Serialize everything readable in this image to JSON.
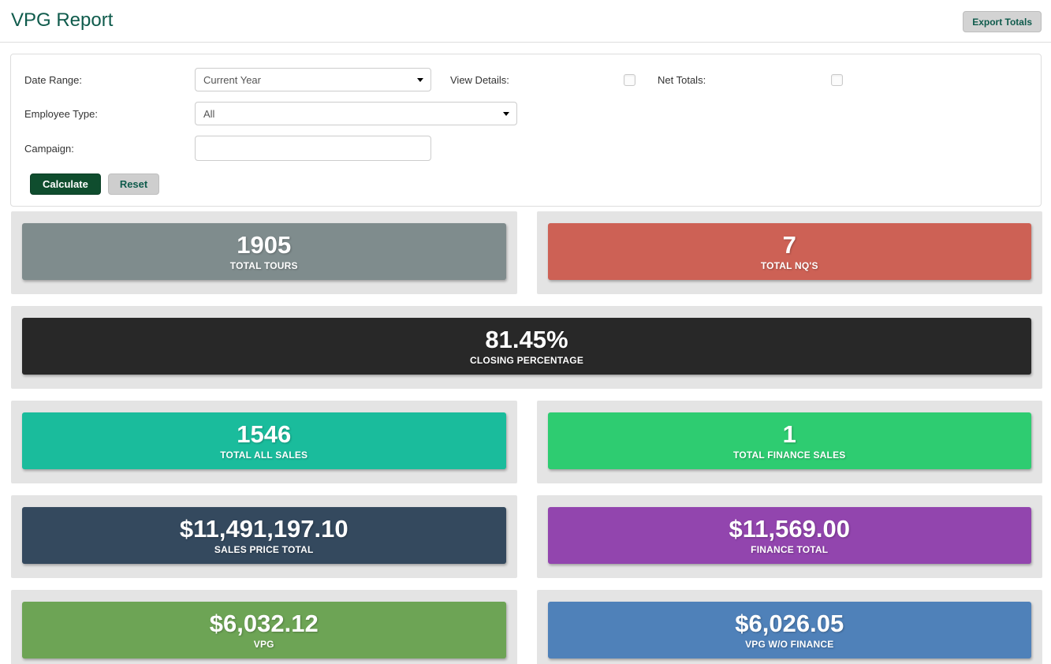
{
  "header": {
    "title": "VPG Report",
    "export_button": "Export Totals"
  },
  "filters": {
    "date_range_label": "Date Range:",
    "date_range_value": "Current Year",
    "view_details_label": "View Details:",
    "net_totals_label": "Net Totals:",
    "employee_type_label": "Employee Type:",
    "employee_type_value": "All",
    "campaign_label": "Campaign:",
    "campaign_value": "",
    "calculate_button": "Calculate",
    "reset_button": "Reset"
  },
  "colors": {
    "title_green": "#0f5b4c",
    "calculate_green": "#0f4d2e",
    "panel_gray": "#e4e4e4"
  },
  "tiles": [
    {
      "value": "1905",
      "label": "TOTAL TOURS",
      "bg": "#7f8c8d"
    },
    {
      "value": "7",
      "label": "TOTAL NQ'S",
      "bg": "#cd6155"
    },
    {
      "value": "81.45%",
      "label": "CLOSING PERCENTAGE",
      "bg": "#282828"
    },
    {
      "value": "1546",
      "label": "TOTAL ALL SALES",
      "bg": "#1abc9c"
    },
    {
      "value": "1",
      "label": "TOTAL FINANCE SALES",
      "bg": "#2ecc71"
    },
    {
      "value": "$11,491,197.10",
      "label": "SALES PRICE TOTAL",
      "bg": "#34495e"
    },
    {
      "value": "$11,569.00",
      "label": "FINANCE TOTAL",
      "bg": "#9245ae"
    },
    {
      "value": "$6,032.12",
      "label": "VPG",
      "bg": "#6da455"
    },
    {
      "value": "$6,026.05",
      "label": "VPG W/O FINANCE",
      "bg": "#4f81b9"
    }
  ]
}
